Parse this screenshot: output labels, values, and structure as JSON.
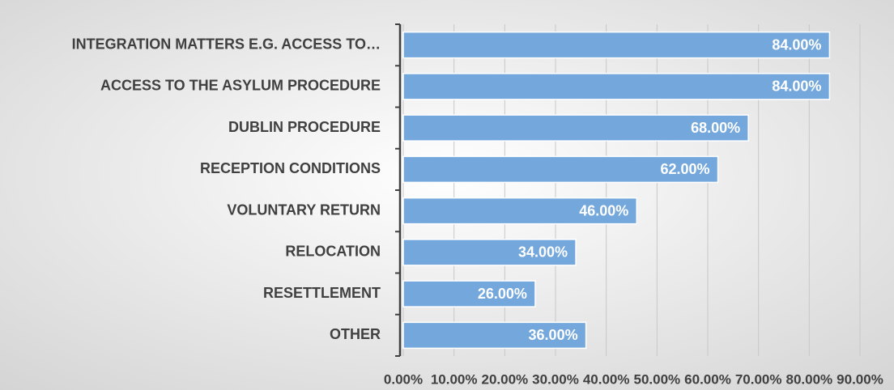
{
  "chart_data": {
    "type": "bar",
    "orientation": "horizontal",
    "categories": [
      "INTEGRATION MATTERS E.G. ACCESS TO…",
      "ACCESS TO THE ASYLUM PROCEDURE",
      "DUBLIN PROCEDURE",
      "RECEPTION CONDITIONS",
      "VOLUNTARY RETURN",
      "RELOCATION",
      "RESETTLEMENT",
      "OTHER"
    ],
    "values": [
      84,
      84,
      68,
      62,
      46,
      34,
      26,
      36
    ],
    "value_labels": [
      "84.00%",
      "84.00%",
      "68.00%",
      "62.00%",
      "46.00%",
      "34.00%",
      "26.00%",
      "36.00%"
    ],
    "color": "#74a7db",
    "xlim": [
      0,
      90
    ],
    "xticks": [
      {
        "value": 0,
        "label": "0.00%"
      },
      {
        "value": 10,
        "label": "10.00%"
      },
      {
        "value": 20,
        "label": "20.00%"
      },
      {
        "value": 30,
        "label": "30.00%"
      },
      {
        "value": 40,
        "label": "40.00%"
      },
      {
        "value": 50,
        "label": "50.00%"
      },
      {
        "value": 60,
        "label": "60.00%"
      },
      {
        "value": 70,
        "label": "70.00%"
      },
      {
        "value": 80,
        "label": "80.00%"
      },
      {
        "value": 90,
        "label": "90.00%"
      }
    ],
    "grid": true
  }
}
